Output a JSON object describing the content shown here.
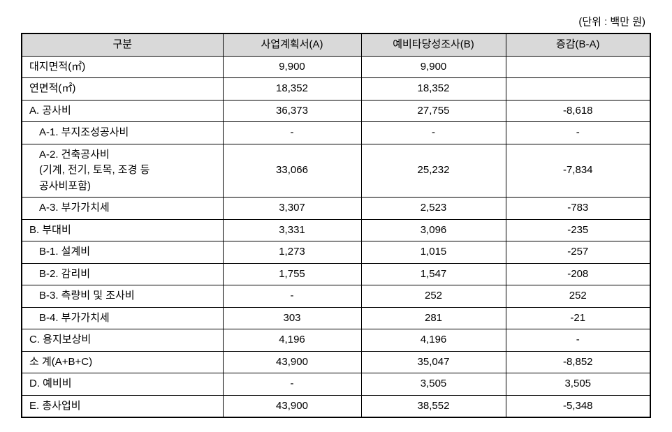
{
  "unit_label": "(단위 : 백만 원)",
  "headers": {
    "category": "구분",
    "plan": "사업계획서(A)",
    "feasibility": "예비타당성조사(B)",
    "diff": "증감(B-A)"
  },
  "rows": [
    {
      "label": "대지면적(㎡)",
      "indent": 0,
      "a": "9,900",
      "b": "9,900",
      "diff": ""
    },
    {
      "label": "연면적(㎡)",
      "indent": 0,
      "a": "18,352",
      "b": "18,352",
      "diff": ""
    },
    {
      "label": "A. 공사비",
      "indent": 0,
      "a": "36,373",
      "b": "27,755",
      "diff": "-8,618"
    },
    {
      "label": "A-1. 부지조성공사비",
      "indent": 1,
      "a": "-",
      "b": "-",
      "diff": "-"
    },
    {
      "label": "A-2. 건축공사비\n  (기계, 전기, 토목, 조경 등\n  공사비포함)",
      "indent": 1,
      "a": "33,066",
      "b": "25,232",
      "diff": "-7,834"
    },
    {
      "label": "A-3. 부가가치세",
      "indent": 1,
      "a": "3,307",
      "b": "2,523",
      "diff": "-783"
    },
    {
      "label": "B. 부대비",
      "indent": 0,
      "a": "3,331",
      "b": "3,096",
      "diff": "-235"
    },
    {
      "label": "B-1. 설계비",
      "indent": 1,
      "a": "1,273",
      "b": "1,015",
      "diff": "-257"
    },
    {
      "label": "B-2. 감리비",
      "indent": 1,
      "a": "1,755",
      "b": "1,547",
      "diff": "-208"
    },
    {
      "label": "B-3. 측량비 및 조사비",
      "indent": 1,
      "a": "-",
      "b": "252",
      "diff": "252"
    },
    {
      "label": "B-4. 부가가치세",
      "indent": 1,
      "a": "303",
      "b": "281",
      "diff": "-21"
    },
    {
      "label": "C. 용지보상비",
      "indent": 0,
      "a": "4,196",
      "b": "4,196",
      "diff": "-"
    },
    {
      "label": "소   계(A+B+C)",
      "indent": 0,
      "a": "43,900",
      "b": "35,047",
      "diff": "-8,852"
    },
    {
      "label": "D. 예비비",
      "indent": 0,
      "a": "-",
      "b": "3,505",
      "diff": "3,505"
    },
    {
      "label": "E. 총사업비",
      "indent": 0,
      "a": "43,900",
      "b": "38,552",
      "diff": "-5,348"
    }
  ],
  "colors": {
    "header_bg": "#d9d9d9",
    "border": "#000000",
    "background": "#ffffff",
    "text": "#000000"
  },
  "table_style": {
    "outer_border_width": 2,
    "inner_border_width": 1,
    "font_size_pt": 15,
    "header_font_weight": "normal"
  }
}
